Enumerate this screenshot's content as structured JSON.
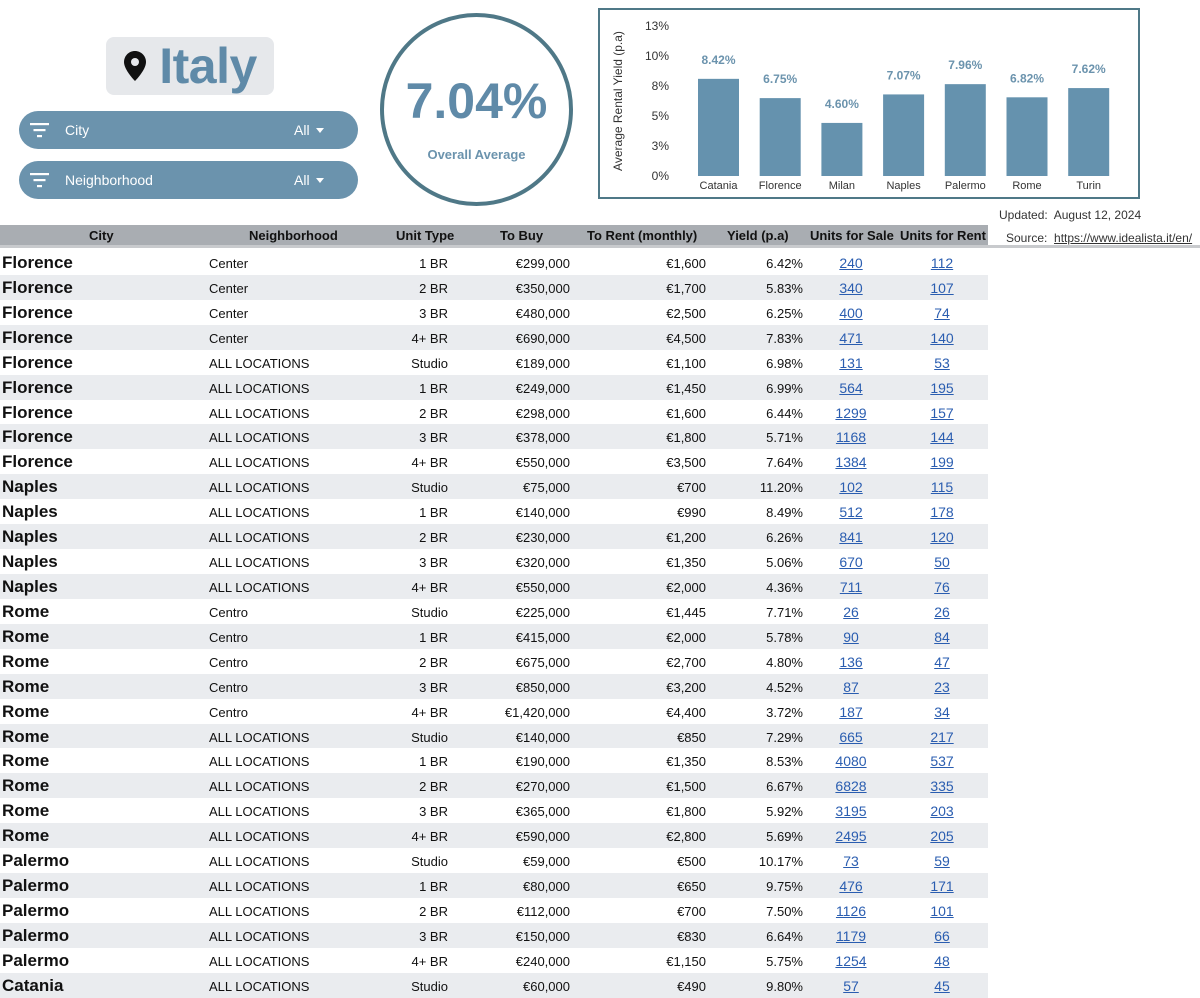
{
  "header": {
    "country": "Italy",
    "pin_icon": "map-pin-icon",
    "filters": [
      {
        "label": "City",
        "value": "All"
      },
      {
        "label": "Neighborhood",
        "value": "All"
      }
    ],
    "average": {
      "value": "7.04%",
      "label": "Overall Average"
    },
    "updated_label": "Updated:",
    "updated_date": "August 12, 2024",
    "source_label": "Source:",
    "source_link": "https://www.idealista.it/en/"
  },
  "colors": {
    "accent": "#6b93ad",
    "bar": "#6592ae",
    "border": "#4f7887",
    "link": "#2a5db0"
  },
  "chart_data": {
    "type": "bar",
    "ylabel": "Average Rental Yield (p.a)",
    "ylim": [
      0,
      13
    ],
    "yticks": [
      "0%",
      "3%",
      "5%",
      "8%",
      "10%",
      "13%"
    ],
    "ytick_values": [
      0,
      2.6,
      5.2,
      7.8,
      10.4,
      13
    ],
    "categories": [
      "Catania",
      "Florence",
      "Milan",
      "Naples",
      "Palermo",
      "Rome",
      "Turin"
    ],
    "values": [
      8.42,
      6.75,
      4.6,
      7.07,
      7.96,
      6.82,
      7.62
    ],
    "labels": [
      "8.42%",
      "6.75%",
      "4.60%",
      "7.07%",
      "7.96%",
      "6.82%",
      "7.62%"
    ],
    "grid": false
  },
  "table": {
    "columns": [
      "City",
      "Neighborhood",
      "Unit Type",
      "To Buy",
      "To Rent (monthly)",
      "Yield (p.a)",
      "Units for Sale",
      "Units for Rent"
    ],
    "rows": [
      [
        "Florence",
        "Center",
        "1 BR",
        "€299,000",
        "€1,600",
        "6.42%",
        "240",
        "112"
      ],
      [
        "Florence",
        "Center",
        "2 BR",
        "€350,000",
        "€1,700",
        "5.83%",
        "340",
        "107"
      ],
      [
        "Florence",
        "Center",
        "3 BR",
        "€480,000",
        "€2,500",
        "6.25%",
        "400",
        "74"
      ],
      [
        "Florence",
        "Center",
        "4+ BR",
        "€690,000",
        "€4,500",
        "7.83%",
        "471",
        "140"
      ],
      [
        "Florence",
        "ALL LOCATIONS",
        "Studio",
        "€189,000",
        "€1,100",
        "6.98%",
        "131",
        "53"
      ],
      [
        "Florence",
        "ALL LOCATIONS",
        "1 BR",
        "€249,000",
        "€1,450",
        "6.99%",
        "564",
        "195"
      ],
      [
        "Florence",
        "ALL LOCATIONS",
        "2 BR",
        "€298,000",
        "€1,600",
        "6.44%",
        "1299",
        "157"
      ],
      [
        "Florence",
        "ALL LOCATIONS",
        "3 BR",
        "€378,000",
        "€1,800",
        "5.71%",
        "1168",
        "144"
      ],
      [
        "Florence",
        "ALL LOCATIONS",
        "4+ BR",
        "€550,000",
        "€3,500",
        "7.64%",
        "1384",
        "199"
      ],
      [
        "Naples",
        "ALL LOCATIONS",
        "Studio",
        "€75,000",
        "€700",
        "11.20%",
        "102",
        "115"
      ],
      [
        "Naples",
        "ALL LOCATIONS",
        "1 BR",
        "€140,000",
        "€990",
        "8.49%",
        "512",
        "178"
      ],
      [
        "Naples",
        "ALL LOCATIONS",
        "2 BR",
        "€230,000",
        "€1,200",
        "6.26%",
        "841",
        "120"
      ],
      [
        "Naples",
        "ALL LOCATIONS",
        "3 BR",
        "€320,000",
        "€1,350",
        "5.06%",
        "670",
        "50"
      ],
      [
        "Naples",
        "ALL LOCATIONS",
        "4+ BR",
        "€550,000",
        "€2,000",
        "4.36%",
        "711",
        "76"
      ],
      [
        "Rome",
        "Centro",
        "Studio",
        "€225,000",
        "€1,445",
        "7.71%",
        "26",
        "26"
      ],
      [
        "Rome",
        "Centro",
        "1 BR",
        "€415,000",
        "€2,000",
        "5.78%",
        "90",
        "84"
      ],
      [
        "Rome",
        "Centro",
        "2 BR",
        "€675,000",
        "€2,700",
        "4.80%",
        "136",
        "47"
      ],
      [
        "Rome",
        "Centro",
        "3 BR",
        "€850,000",
        "€3,200",
        "4.52%",
        "87",
        "23"
      ],
      [
        "Rome",
        "Centro",
        "4+ BR",
        "€1,420,000",
        "€4,400",
        "3.72%",
        "187",
        "34"
      ],
      [
        "Rome",
        "ALL LOCATIONS",
        "Studio",
        "€140,000",
        "€850",
        "7.29%",
        "665",
        "217"
      ],
      [
        "Rome",
        "ALL LOCATIONS",
        "1 BR",
        "€190,000",
        "€1,350",
        "8.53%",
        "4080",
        "537"
      ],
      [
        "Rome",
        "ALL LOCATIONS",
        "2 BR",
        "€270,000",
        "€1,500",
        "6.67%",
        "6828",
        "335"
      ],
      [
        "Rome",
        "ALL LOCATIONS",
        "3 BR",
        "€365,000",
        "€1,800",
        "5.92%",
        "3195",
        "203"
      ],
      [
        "Rome",
        "ALL LOCATIONS",
        "4+ BR",
        "€590,000",
        "€2,800",
        "5.69%",
        "2495",
        "205"
      ],
      [
        "Palermo",
        "ALL LOCATIONS",
        "Studio",
        "€59,000",
        "€500",
        "10.17%",
        "73",
        "59"
      ],
      [
        "Palermo",
        "ALL LOCATIONS",
        "1 BR",
        "€80,000",
        "€650",
        "9.75%",
        "476",
        "171"
      ],
      [
        "Palermo",
        "ALL LOCATIONS",
        "2 BR",
        "€112,000",
        "€700",
        "7.50%",
        "1126",
        "101"
      ],
      [
        "Palermo",
        "ALL LOCATIONS",
        "3 BR",
        "€150,000",
        "€830",
        "6.64%",
        "1179",
        "66"
      ],
      [
        "Palermo",
        "ALL LOCATIONS",
        "4+ BR",
        "€240,000",
        "€1,150",
        "5.75%",
        "1254",
        "48"
      ],
      [
        "Catania",
        "ALL LOCATIONS",
        "Studio",
        "€60,000",
        "€490",
        "9.80%",
        "57",
        "45"
      ]
    ]
  }
}
